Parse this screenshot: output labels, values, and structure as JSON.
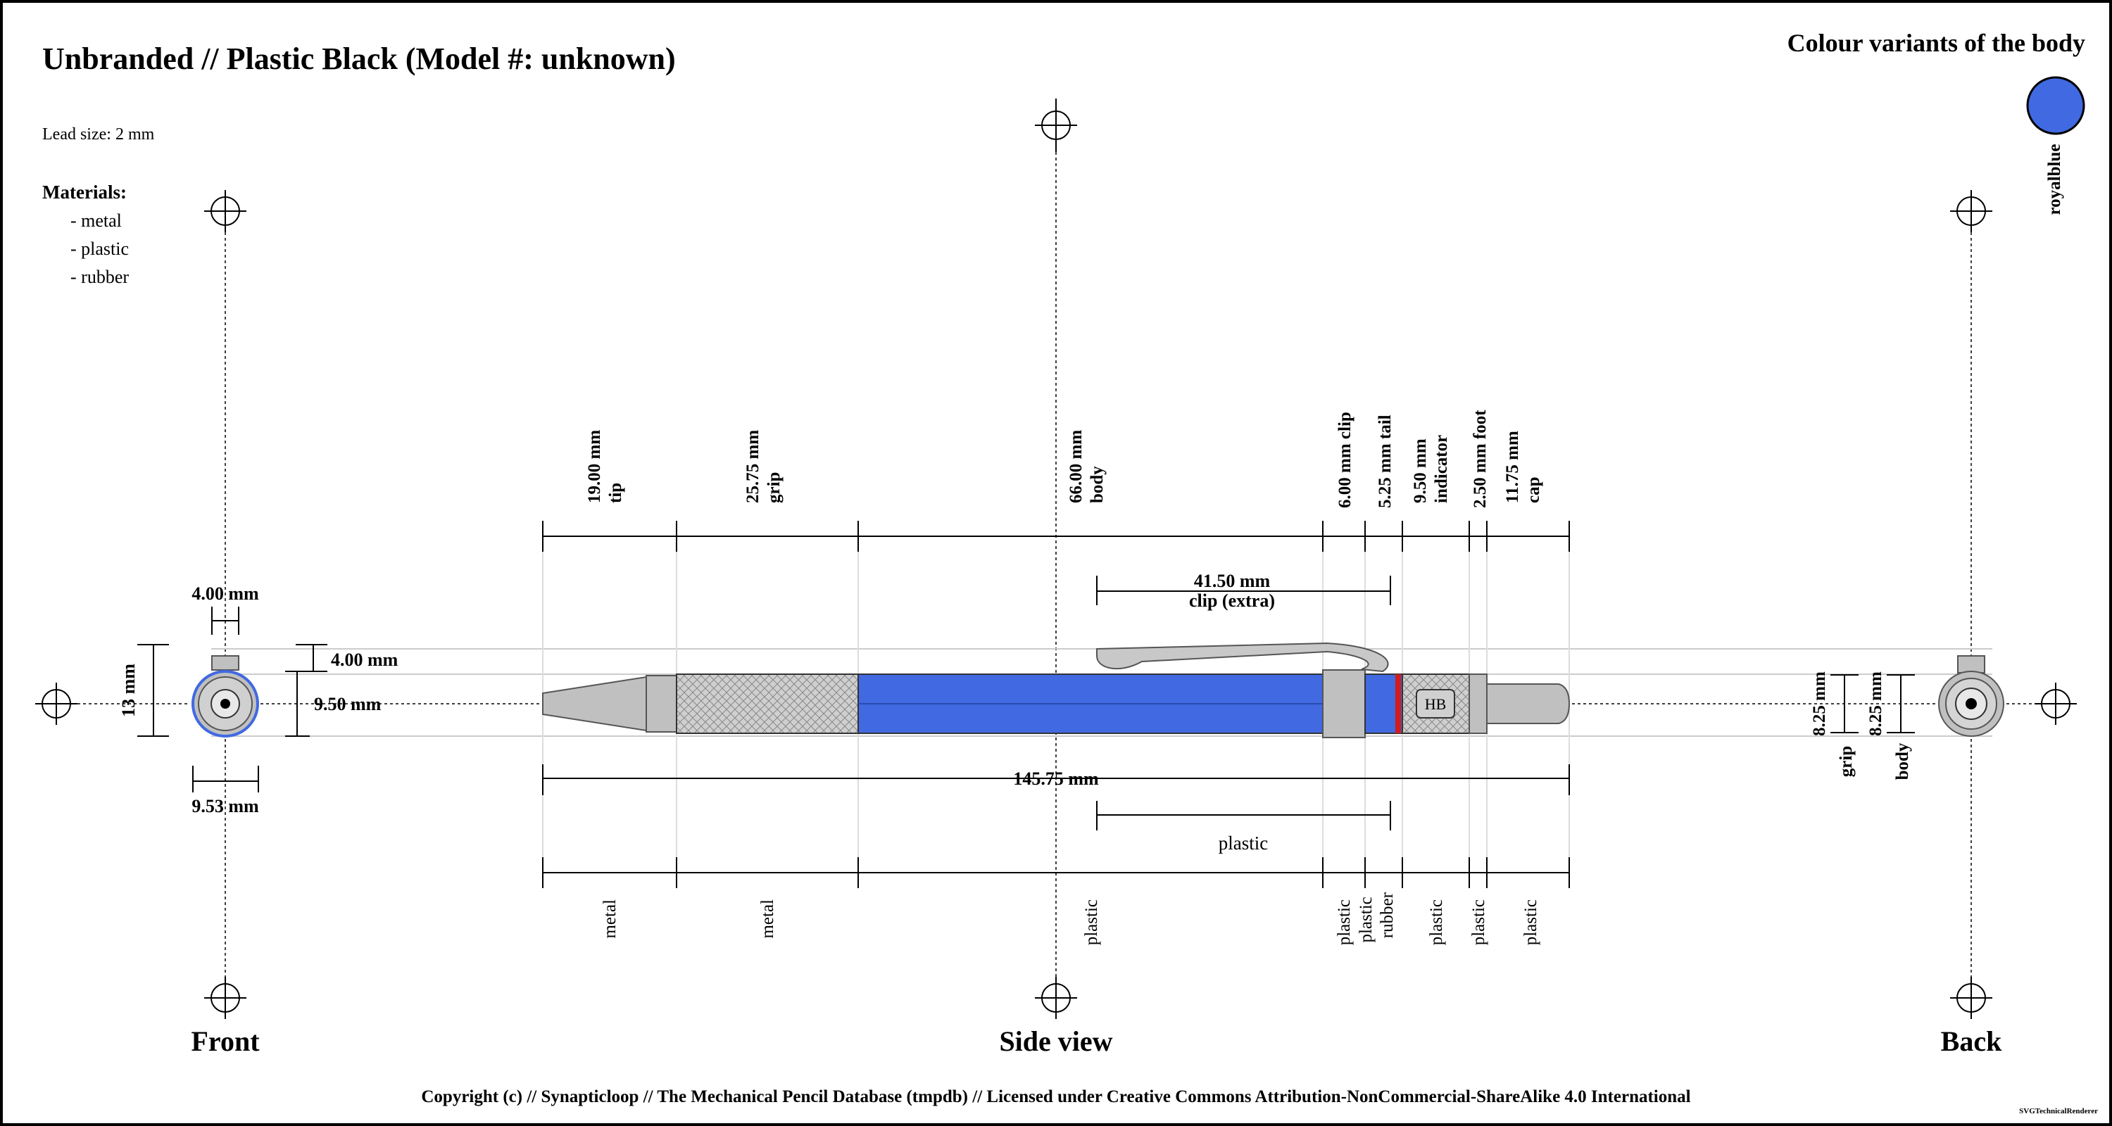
{
  "title": "Unbranded // Plastic Black (Model #: unknown)",
  "lead_size": "Lead size: 2 mm",
  "materials": {
    "heading": "Materials:",
    "items": [
      "- metal",
      "- plastic",
      "- rubber"
    ]
  },
  "colour_variants": {
    "heading": "Colour variants of the body",
    "variants": [
      {
        "name": "royalblue",
        "color": "#4169e1"
      }
    ]
  },
  "views": {
    "front": "Front",
    "side": "Side view",
    "back": "Back"
  },
  "front_dims": {
    "clip_width": "4.00 mm",
    "height": "13 mm",
    "clip_height": "4.00 mm",
    "body_diameter": "9.50 mm",
    "width": "9.53 mm"
  },
  "segments": [
    {
      "length": "19.00 mm",
      "name": "tip",
      "material": "metal"
    },
    {
      "length": "25.75 mm",
      "name": "grip",
      "material": "metal"
    },
    {
      "length": "66.00 mm",
      "name": "body",
      "material": "plastic"
    },
    {
      "length": "6.00 mm",
      "name": "clip",
      "material": "plastic"
    },
    {
      "length": "5.25 mm",
      "name": "tail",
      "material": "plastic\nrubber"
    },
    {
      "length": "9.50 mm",
      "name": "indicator",
      "material": "plastic"
    },
    {
      "length": "2.50 mm",
      "name": "foot",
      "material": "plastic"
    },
    {
      "length": "11.75 mm",
      "name": "cap",
      "material": "plastic"
    }
  ],
  "total_length": "145.75 mm",
  "clip_extra": {
    "length": "41.50 mm",
    "label": "clip (extra)",
    "material": "plastic"
  },
  "indicator_label": "HB",
  "back_dims": [
    {
      "value": "8.25 mm",
      "label": "grip"
    },
    {
      "value": "8.25 mm",
      "label": "body"
    }
  ],
  "copyright": "Copyright (c) // Synapticloop // The Mechanical Pencil Database (tmpdb) // Licensed under Creative Commons Attribution-NonCommercial-ShareAlike 4.0 International",
  "renderer": "SVGTechnicalRenderer",
  "colors": {
    "body": "#4169e1",
    "metal": "#c0c0c0",
    "rubber_band": "#d11c1c",
    "frame": "#000000"
  }
}
